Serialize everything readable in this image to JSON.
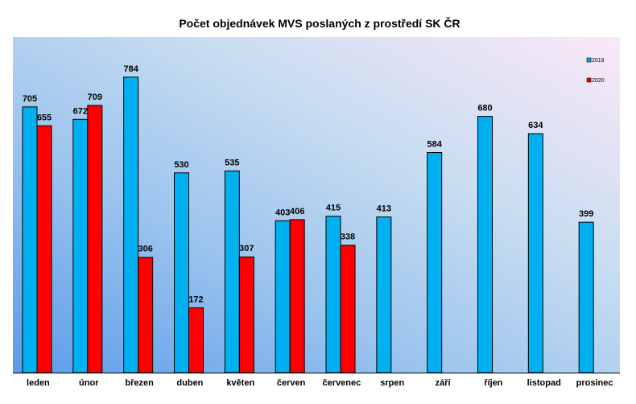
{
  "chart_data": {
    "type": "bar",
    "title": "Počet objednávek MVS poslaných z prostředí SK ČR",
    "xlabel": "",
    "ylabel": "",
    "ylim": [
      0,
      850
    ],
    "grid": false,
    "legend_position": "top-right",
    "categories": [
      "leden",
      "únor",
      "březen",
      "duben",
      "květen",
      "červen",
      "červenec",
      "srpen",
      "září",
      "říjen",
      "listopad",
      "prosinec"
    ],
    "series": [
      {
        "name": "2019",
        "color": "#00B0F0",
        "values": [
          705,
          672,
          784,
          530,
          535,
          403,
          415,
          413,
          584,
          680,
          634,
          399
        ]
      },
      {
        "name": "2020",
        "color": "#FF0000",
        "values": [
          655,
          709,
          306,
          172,
          307,
          406,
          338,
          null,
          null,
          null,
          null,
          null
        ]
      }
    ]
  }
}
